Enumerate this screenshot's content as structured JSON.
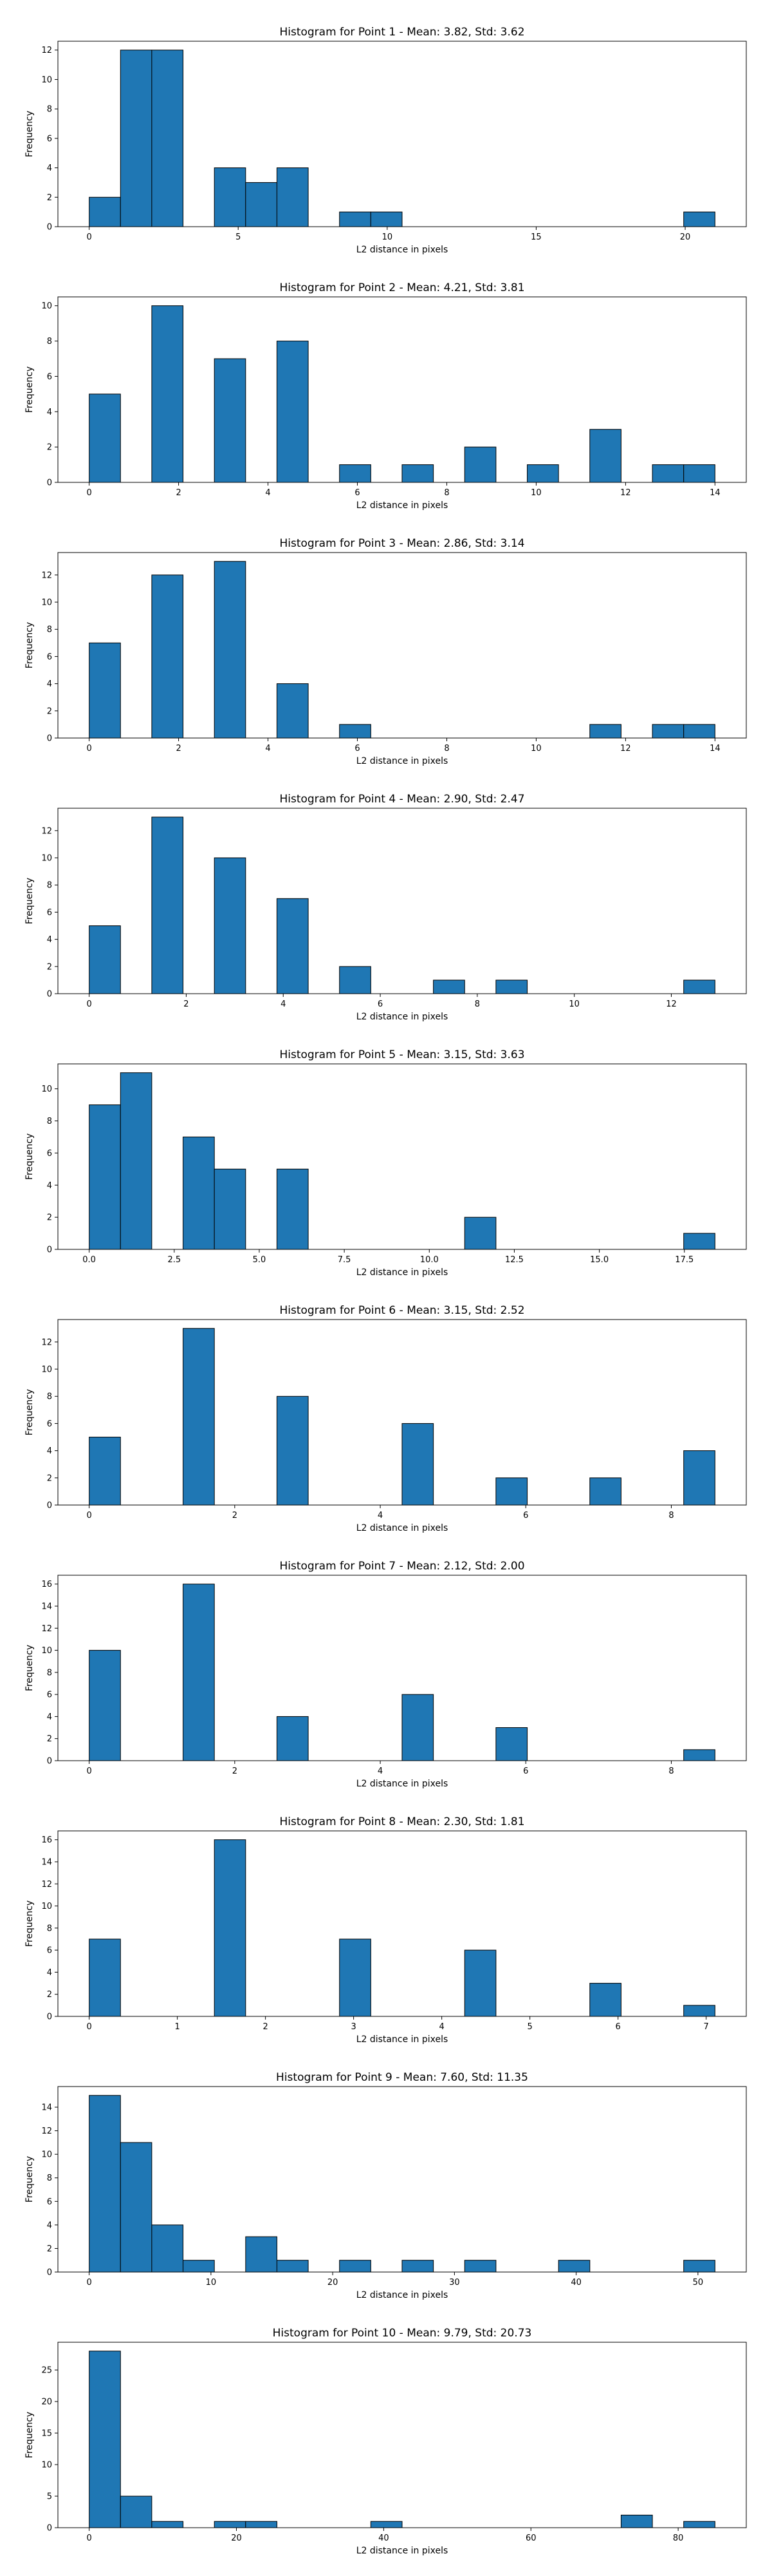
{
  "chart_data": [
    {
      "type": "bar",
      "title": "Histogram for Point 1 - Mean: 3.82, Std: 3.62",
      "xlabel": "L2 distance in pixels",
      "ylabel": "Frequency",
      "xlim": [
        -1.05,
        22.05
      ],
      "ylim": [
        0,
        12.6
      ],
      "xticks": [
        0,
        5,
        10,
        15,
        20
      ],
      "xtick_labels": [
        "0",
        "5",
        "10",
        "15",
        "20"
      ],
      "yticks": [
        0,
        2,
        4,
        6,
        8,
        10,
        12
      ],
      "ytick_labels": [
        "0",
        "2",
        "4",
        "6",
        "8",
        "10",
        "12"
      ],
      "bins": [
        [
          0,
          1.05,
          2
        ],
        [
          1.05,
          2.1,
          12
        ],
        [
          2.1,
          3.15,
          12
        ],
        [
          4.2,
          5.25,
          4
        ],
        [
          5.25,
          6.3,
          3
        ],
        [
          6.3,
          7.35,
          4
        ],
        [
          8.4,
          9.45,
          1
        ],
        [
          9.45,
          10.5,
          1
        ],
        [
          19.95,
          21,
          1
        ]
      ]
    },
    {
      "type": "bar",
      "title": "Histogram for Point 2 - Mean: 4.21, Std: 3.81",
      "xlabel": "L2 distance in pixels",
      "ylabel": "Frequency",
      "xlim": [
        -0.7,
        14.7
      ],
      "ylim": [
        0,
        10.5
      ],
      "xticks": [
        0,
        2,
        4,
        6,
        8,
        10,
        12,
        14
      ],
      "xtick_labels": [
        "0",
        "2",
        "4",
        "6",
        "8",
        "10",
        "12",
        "14"
      ],
      "yticks": [
        0,
        2,
        4,
        6,
        8,
        10
      ],
      "ytick_labels": [
        "0",
        "2",
        "4",
        "6",
        "8",
        "10"
      ],
      "bins": [
        [
          0,
          0.7,
          5
        ],
        [
          1.4,
          2.1,
          10
        ],
        [
          2.8,
          3.5,
          7
        ],
        [
          4.2,
          4.9,
          8
        ],
        [
          5.6,
          6.3,
          1
        ],
        [
          7,
          7.7,
          1
        ],
        [
          8.4,
          9.1,
          2
        ],
        [
          9.8,
          10.5,
          1
        ],
        [
          11.2,
          11.9,
          3
        ],
        [
          12.6,
          13.3,
          1
        ],
        [
          13.3,
          14,
          1
        ]
      ]
    },
    {
      "type": "bar",
      "title": "Histogram for Point 3 - Mean: 2.86, Std: 3.14",
      "xlabel": "L2 distance in pixels",
      "ylabel": "Frequency",
      "xlim": [
        -0.7,
        14.7
      ],
      "ylim": [
        0,
        13.65
      ],
      "xticks": [
        0,
        2,
        4,
        6,
        8,
        10,
        12,
        14
      ],
      "xtick_labels": [
        "0",
        "2",
        "4",
        "6",
        "8",
        "10",
        "12",
        "14"
      ],
      "yticks": [
        0,
        2,
        4,
        6,
        8,
        10,
        12
      ],
      "ytick_labels": [
        "0",
        "2",
        "4",
        "6",
        "8",
        "10",
        "12"
      ],
      "bins": [
        [
          0,
          0.7,
          7
        ],
        [
          1.4,
          2.1,
          12
        ],
        [
          2.8,
          3.5,
          13
        ],
        [
          4.2,
          4.9,
          4
        ],
        [
          5.6,
          6.3,
          1
        ],
        [
          11.2,
          11.9,
          1
        ],
        [
          12.6,
          13.3,
          1
        ],
        [
          13.3,
          14,
          1
        ]
      ]
    },
    {
      "type": "bar",
      "title": "Histogram for Point 4 - Mean: 2.90, Std: 2.47",
      "xlabel": "L2 distance in pixels",
      "ylabel": "Frequency",
      "xlim": [
        -0.645,
        13.545
      ],
      "ylim": [
        0,
        13.65
      ],
      "xticks": [
        0,
        2,
        4,
        6,
        8,
        10,
        12
      ],
      "xtick_labels": [
        "0",
        "2",
        "4",
        "6",
        "8",
        "10",
        "12"
      ],
      "yticks": [
        0,
        2,
        4,
        6,
        8,
        10,
        12
      ],
      "ytick_labels": [
        "0",
        "2",
        "4",
        "6",
        "8",
        "10",
        "12"
      ],
      "bins": [
        [
          0,
          0.645,
          5
        ],
        [
          1.29,
          1.935,
          13
        ],
        [
          2.58,
          3.225,
          10
        ],
        [
          3.87,
          4.515,
          7
        ],
        [
          5.16,
          5.805,
          2
        ],
        [
          7.095,
          7.74,
          1
        ],
        [
          8.385,
          9.03,
          1
        ],
        [
          12.255,
          12.9,
          1
        ]
      ]
    },
    {
      "type": "bar",
      "title": "Histogram for Point 5 - Mean: 3.15, Std: 3.63",
      "xlabel": "L2 distance in pixels",
      "ylabel": "Frequency",
      "xlim": [
        -0.92,
        19.32
      ],
      "ylim": [
        0,
        11.55
      ],
      "xticks": [
        0,
        2.5,
        5,
        7.5,
        10,
        12.5,
        15,
        17.5
      ],
      "xtick_labels": [
        "0.0",
        "2.5",
        "5.0",
        "7.5",
        "10.0",
        "12.5",
        "15.0",
        "17.5"
      ],
      "yticks": [
        0,
        2,
        4,
        6,
        8,
        10
      ],
      "ytick_labels": [
        "0",
        "2",
        "4",
        "6",
        "8",
        "10"
      ],
      "bins": [
        [
          0,
          0.92,
          9
        ],
        [
          0.92,
          1.84,
          11
        ],
        [
          2.76,
          3.68,
          7
        ],
        [
          3.68,
          4.6,
          5
        ],
        [
          5.52,
          6.44,
          5
        ],
        [
          11.04,
          11.96,
          2
        ],
        [
          17.48,
          18.4,
          1
        ]
      ]
    },
    {
      "type": "bar",
      "title": "Histogram for Point 6 - Mean: 3.15, Std: 2.52",
      "xlabel": "L2 distance in pixels",
      "ylabel": "Frequency",
      "xlim": [
        -0.43,
        9.03
      ],
      "ylim": [
        0,
        13.65
      ],
      "xticks": [
        0,
        2,
        4,
        6,
        8
      ],
      "xtick_labels": [
        "0",
        "2",
        "4",
        "6",
        "8"
      ],
      "yticks": [
        0,
        2,
        4,
        6,
        8,
        10,
        12
      ],
      "ytick_labels": [
        "0",
        "2",
        "4",
        "6",
        "8",
        "10",
        "12"
      ],
      "bins": [
        [
          0,
          0.43,
          5
        ],
        [
          1.29,
          1.72,
          13
        ],
        [
          2.58,
          3.01,
          8
        ],
        [
          4.3,
          4.73,
          6
        ],
        [
          5.59,
          6.02,
          2
        ],
        [
          6.88,
          7.31,
          2
        ],
        [
          8.17,
          8.6,
          4
        ]
      ]
    },
    {
      "type": "bar",
      "title": "Histogram for Point 7 - Mean: 2.12, Std: 2.00",
      "xlabel": "L2 distance in pixels",
      "ylabel": "Frequency",
      "xlim": [
        -0.43,
        9.03
      ],
      "ylim": [
        0,
        16.8
      ],
      "xticks": [
        0,
        2,
        4,
        6,
        8
      ],
      "xtick_labels": [
        "0",
        "2",
        "4",
        "6",
        "8"
      ],
      "yticks": [
        0,
        2,
        4,
        6,
        8,
        10,
        12,
        14,
        16
      ],
      "ytick_labels": [
        "0",
        "2",
        "4",
        "6",
        "8",
        "10",
        "12",
        "14",
        "16"
      ],
      "bins": [
        [
          0,
          0.43,
          10
        ],
        [
          1.29,
          1.72,
          16
        ],
        [
          2.58,
          3.01,
          4
        ],
        [
          4.3,
          4.73,
          6
        ],
        [
          5.59,
          6.02,
          3
        ],
        [
          8.17,
          8.6,
          1
        ]
      ]
    },
    {
      "type": "bar",
      "title": "Histogram for Point 8 - Mean: 2.30, Std: 1.81",
      "xlabel": "L2 distance in pixels",
      "ylabel": "Frequency",
      "xlim": [
        -0.355,
        7.455
      ],
      "ylim": [
        0,
        16.8
      ],
      "xticks": [
        0,
        1,
        2,
        3,
        4,
        5,
        6,
        7
      ],
      "xtick_labels": [
        "0",
        "1",
        "2",
        "3",
        "4",
        "5",
        "6",
        "7"
      ],
      "yticks": [
        0,
        2,
        4,
        6,
        8,
        10,
        12,
        14,
        16
      ],
      "ytick_labels": [
        "0",
        "2",
        "4",
        "6",
        "8",
        "10",
        "12",
        "14",
        "16"
      ],
      "bins": [
        [
          0,
          0.355,
          7
        ],
        [
          1.42,
          1.775,
          16
        ],
        [
          2.84,
          3.195,
          7
        ],
        [
          4.26,
          4.615,
          6
        ],
        [
          5.68,
          6.035,
          3
        ],
        [
          6.745,
          7.1,
          1
        ]
      ]
    },
    {
      "type": "bar",
      "title": "Histogram for Point 9 - Mean: 7.60, Std: 11.35",
      "xlabel": "L2 distance in pixels",
      "ylabel": "Frequency",
      "xlim": [
        -2.57,
        53.97
      ],
      "ylim": [
        0,
        15.75
      ],
      "xticks": [
        0,
        10,
        20,
        30,
        40,
        50
      ],
      "xtick_labels": [
        "0",
        "10",
        "20",
        "30",
        "40",
        "50"
      ],
      "yticks": [
        0,
        2,
        4,
        6,
        8,
        10,
        12,
        14
      ],
      "ytick_labels": [
        "0",
        "2",
        "4",
        "6",
        "8",
        "10",
        "12",
        "14"
      ],
      "bins": [
        [
          0,
          2.57,
          15
        ],
        [
          2.57,
          5.14,
          11
        ],
        [
          5.14,
          7.71,
          4
        ],
        [
          7.71,
          10.28,
          1
        ],
        [
          12.85,
          15.42,
          3
        ],
        [
          15.42,
          17.99,
          1
        ],
        [
          20.56,
          23.13,
          1
        ],
        [
          25.7,
          28.27,
          1
        ],
        [
          30.84,
          33.41,
          1
        ],
        [
          38.55,
          41.12,
          1
        ],
        [
          48.83,
          51.4,
          1
        ]
      ]
    },
    {
      "type": "bar",
      "title": "Histogram for Point 10 - Mean: 9.79, Std: 20.73",
      "xlabel": "L2 distance in pixels",
      "ylabel": "Frequency",
      "xlim": [
        -4.25,
        89.25
      ],
      "ylim": [
        0,
        29.4
      ],
      "xticks": [
        0,
        20,
        40,
        60,
        80
      ],
      "xtick_labels": [
        "0",
        "20",
        "40",
        "60",
        "80"
      ],
      "yticks": [
        0,
        5,
        10,
        15,
        20,
        25
      ],
      "ytick_labels": [
        "0",
        "5",
        "10",
        "15",
        "20",
        "25"
      ],
      "bins": [
        [
          0,
          4.25,
          28
        ],
        [
          4.25,
          8.5,
          5
        ],
        [
          8.5,
          12.75,
          1
        ],
        [
          17,
          21.25,
          1
        ],
        [
          21.25,
          25.5,
          1
        ],
        [
          38.25,
          42.5,
          1
        ],
        [
          72.25,
          76.5,
          2
        ],
        [
          80.75,
          85,
          1
        ]
      ]
    }
  ],
  "style": {
    "bar_color": "#1f77b4",
    "edge_color": "#000000",
    "axis_color": "#000000",
    "background": "#ffffff"
  }
}
